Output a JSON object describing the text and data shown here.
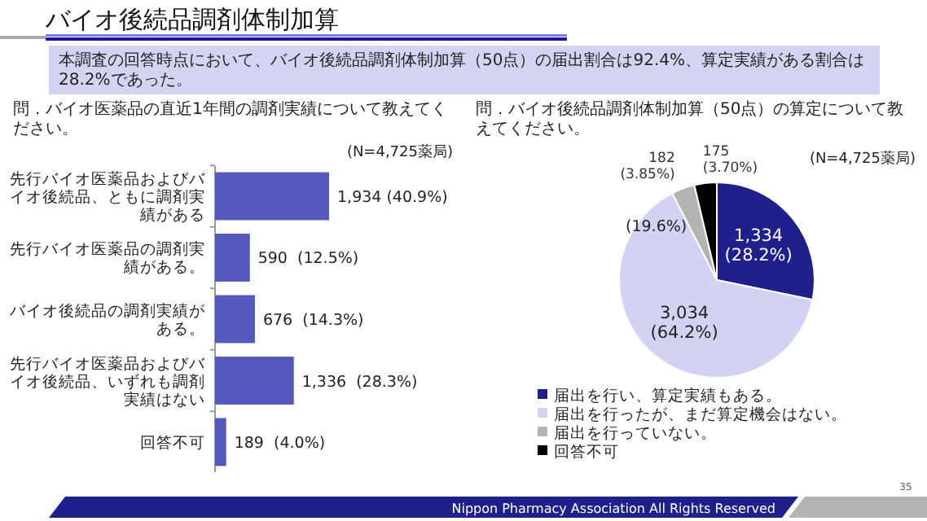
{
  "chart_data": [
    {
      "type": "bar",
      "orientation": "horizontal",
      "title": "問．バイオ医薬品の直近1年間の調剤実績について教えてください。",
      "annotations": [
        "バイオ後続品調剤体制加算",
        "本調査の回答時点において、バイオ後続品調剤体制加算（50点）の届出割合は92.4%、算定実績がある割合は28.2%であった。",
        "(N=4,725薬局)"
      ],
      "categories": [
        "先行バイオ医薬品およびバイオ後続品、ともに調剤実績がある",
        "先行バイオ医薬品の調剤実績がある。",
        "バイオ後続品の調剤実績がある。",
        "先行バイオ医薬品およびバイオ後続品、いずれも調剤実績はない",
        "回答不可"
      ],
      "values": [
        1934,
        590,
        676,
        1336,
        189
      ],
      "value_labels": [
        "1,934 (40.9%)",
        "590  (12.5%)",
        "676  (14.3%)",
        "1,336  (28.3%)",
        "189  (4.0%)"
      ],
      "color": "#5558bd"
    },
    {
      "type": "pie",
      "title": "問．バイオ後続品調剤体制加算（50点）の算定について教えてください。",
      "annotations": [
        "(N=4,725薬局)",
        "(19.6%)",
        "Nippon Pharmacy Association All Rights Reserved",
        "35"
      ],
      "categories": [
        "届出を行い、算定実績もある。",
        "届出を行ったが、まだ算定機会はない。",
        "届出を行っていない。",
        "回答不可"
      ],
      "values": [
        1334,
        3034,
        182,
        175
      ],
      "value_labels": [
        "1,334\n(28.2%)",
        "3,034\n(64.2%)",
        "182\n(3.85%)",
        "175\n(3.70%)"
      ],
      "colors": [
        "#20208c",
        "#d2d2f2",
        "#b4b4b4",
        "#000000"
      ],
      "legend": "bottom"
    }
  ]
}
